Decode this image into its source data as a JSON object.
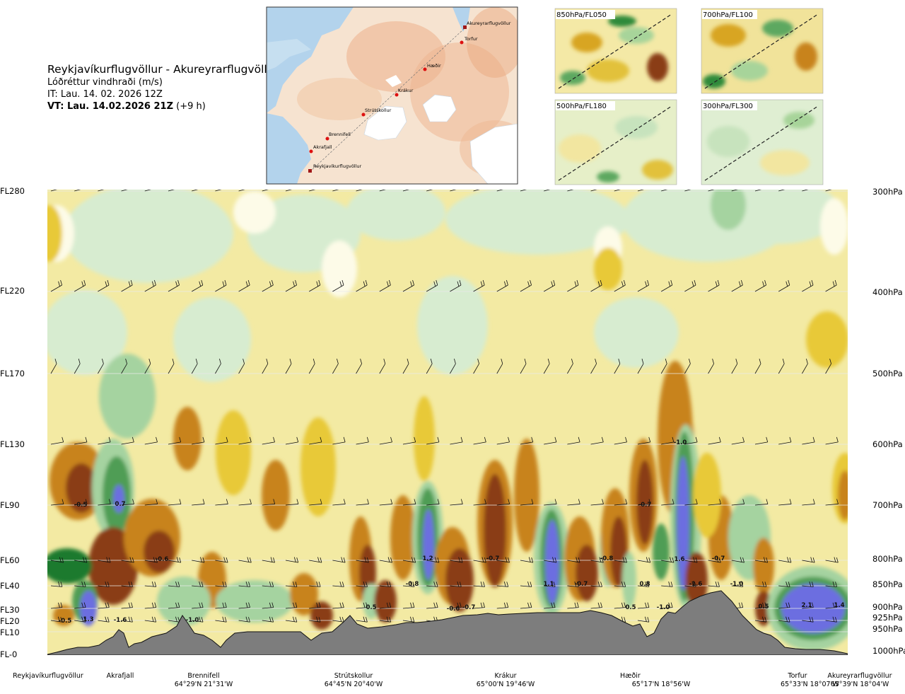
{
  "header": {
    "title": "Reykjavíkurflugvöllur - Akureyrarflugvöllur",
    "subtitle": "Lóðréttur vindhraði (m/s)",
    "issue_time": "IT: Lau. 14. 02. 2026 12Z",
    "valid_time_bold": "VT: Lau. 14.02.2026 21Z",
    "valid_time_offset": " (+9 h)"
  },
  "map": {
    "places": [
      "Akureyrarflugvöllur",
      "Torfur",
      "Hæðir",
      "Krákur",
      "Strútskollur",
      "Brennifell",
      "Akrafjall",
      "Reykjavíkurflugvöllur"
    ]
  },
  "thumbnails": [
    "850hPa/FL050",
    "700hPa/FL100",
    "500hPa/FL180",
    "300hPa/FL300"
  ],
  "chart_data": {
    "type": "heatmap",
    "title": "Reykjavíkurflugvöllur - Akureyrarflugvöllur",
    "quantity": "Lóðréttur vindhraði (m/s)",
    "y_left_labels": [
      "FL280",
      "FL220",
      "FL170",
      "FL130",
      "FL90",
      "FL60",
      "FL40",
      "FL30",
      "FL20",
      "FL10",
      "FL-0"
    ],
    "y_right_labels": [
      "300hPa",
      "400hPa",
      "500hPa",
      "600hPa",
      "700hPa",
      "800hPa",
      "850hPa",
      "900hPa",
      "925hPa",
      "950hPa",
      "1000hPa"
    ],
    "x_locations": [
      {
        "name": "Reykjavíkurflugvöllur",
        "coord": ""
      },
      {
        "name": "Akrafjall",
        "coord": ""
      },
      {
        "name": "Brennifell",
        "coord": "64°29'N 21°31'W"
      },
      {
        "name": "Strútskollur",
        "coord": "64°45'N 20°40'W"
      },
      {
        "name": "Krákur",
        "coord": "65°00'N 19°46'W"
      },
      {
        "name": "Hæðir",
        "coord": "65°17'N 18°56'W"
      },
      {
        "name": "Torfur",
        "coord": "65°33'N 18°07'W"
      },
      {
        "name": "Akureyrarflugvöllur",
        "coord": "65°39'N 18°04'W"
      }
    ],
    "annotations": [
      "-0.5",
      "-0.5",
      "0.7",
      "1.3",
      "-1.6",
      "-1.0",
      "-0.6",
      "0.5",
      "-0.8",
      "1.2",
      "-0.6",
      "-0.7",
      "-0.7",
      "1.1",
      "-0.7",
      "-0.8",
      "0.5",
      "0.8",
      "-1.0",
      "-0.7",
      "-1.6",
      "1.6",
      "-1.0",
      "-0.7",
      "-1.0",
      "0.5",
      "2.1",
      "1.4"
    ],
    "colors": {
      "strong_sink": "#8a3e17",
      "sink": "#c8831c",
      "weak_sink": "#e8c938",
      "slight_sink": "#f3eaa3",
      "neutral": "#fdfbe8",
      "slight_rise": "#d7ecd0",
      "weak_rise": "#a5d3a0",
      "rise": "#4f9d55",
      "strong_rise": "#1f7a2e",
      "max_rise": "#6c6ee0",
      "terrain": "#7d7d7d"
    }
  }
}
